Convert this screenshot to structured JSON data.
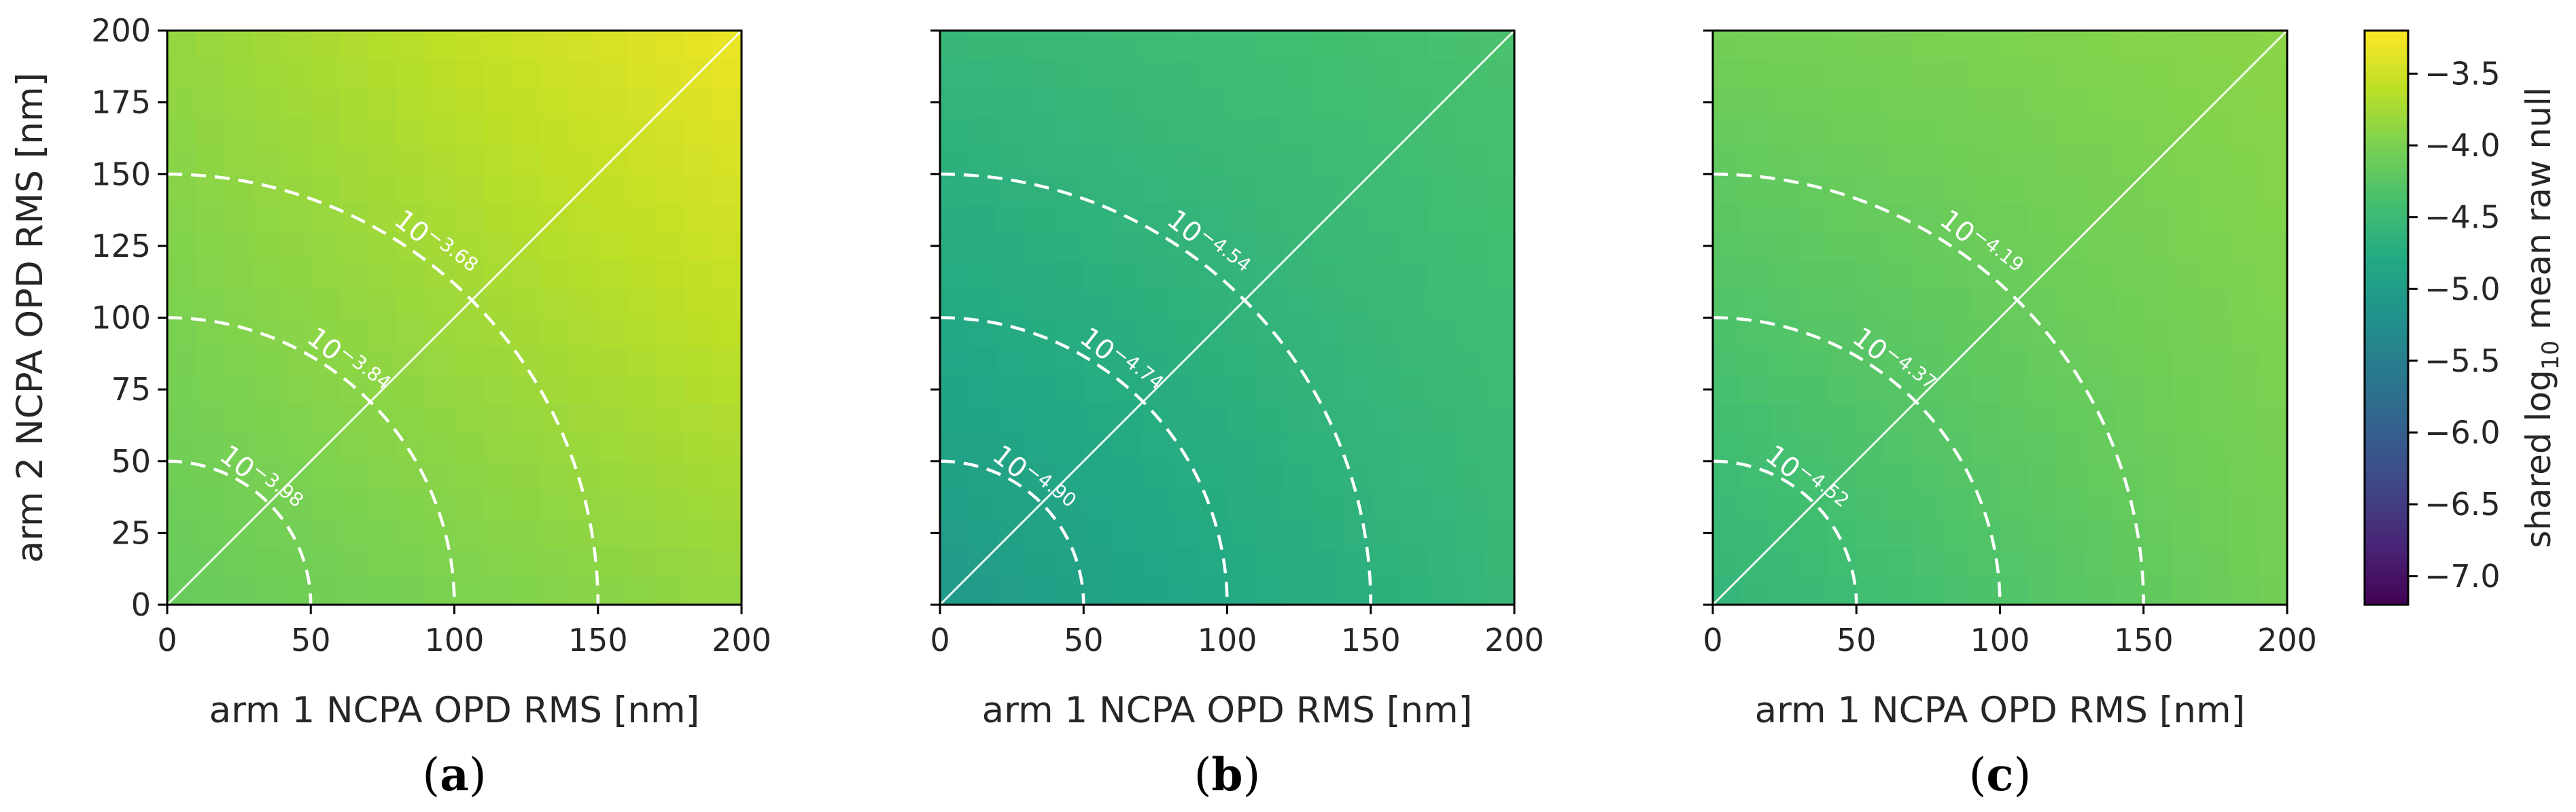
{
  "chart_data": [
    {
      "type": "heatmap",
      "panel_label": "(a)",
      "panel_letter": "a",
      "xlabel": "arm 1 NCPA OPD RMS [nm]",
      "ylabel": "arm 2 NCPA OPD RMS [nm]",
      "xlim": [
        0,
        200
      ],
      "ylim": [
        0,
        200
      ],
      "xticks": [
        0,
        50,
        100,
        150,
        200
      ],
      "yticks": [
        0,
        25,
        50,
        75,
        100,
        125,
        150,
        175,
        200
      ],
      "grid": 20,
      "field": {
        "c00": -4.15,
        "c10": -3.85,
        "c01": -3.85,
        "c11": -3.3
      },
      "contours": [
        {
          "radius": 50,
          "mantissa": "10",
          "exponent": "−3.98"
        },
        {
          "radius": 100,
          "mantissa": "10",
          "exponent": "−3.84"
        },
        {
          "radius": 150,
          "mantissa": "10",
          "exponent": "−3.68"
        }
      ]
    },
    {
      "type": "heatmap",
      "panel_label": "(b)",
      "panel_letter": "b",
      "xlabel": "arm 1 NCPA OPD RMS [nm]",
      "ylabel": "",
      "xlim": [
        0,
        200
      ],
      "ylim": [
        0,
        200
      ],
      "xticks": [
        0,
        50,
        100,
        150,
        200
      ],
      "yticks": [
        0,
        25,
        50,
        75,
        100,
        125,
        150,
        175,
        200
      ],
      "grid": 20,
      "field": {
        "c00": -5.05,
        "c10": -4.55,
        "c01": -4.55,
        "c11": -4.35
      },
      "contours": [
        {
          "radius": 50,
          "mantissa": "10",
          "exponent": "−4.90"
        },
        {
          "radius": 100,
          "mantissa": "10",
          "exponent": "−4.74"
        },
        {
          "radius": 150,
          "mantissa": "10",
          "exponent": "−4.54"
        }
      ]
    },
    {
      "type": "heatmap",
      "panel_label": "(c)",
      "panel_letter": "c",
      "xlabel": "arm 1 NCPA OPD RMS [nm]",
      "ylabel": "",
      "xlim": [
        0,
        200
      ],
      "ylim": [
        0,
        200
      ],
      "xticks": [
        0,
        50,
        100,
        150,
        200
      ],
      "yticks": [
        0,
        25,
        50,
        75,
        100,
        125,
        150,
        175,
        200
      ],
      "grid": 20,
      "field": {
        "c00": -4.6,
        "c10": -4.05,
        "c01": -4.05,
        "c11": -3.9
      },
      "contours": [
        {
          "radius": 50,
          "mantissa": "10",
          "exponent": "−4.52"
        },
        {
          "radius": 100,
          "mantissa": "10",
          "exponent": "−4.37"
        },
        {
          "radius": 150,
          "mantissa": "10",
          "exponent": "−4.19"
        }
      ]
    }
  ],
  "colorbar": {
    "label_prefix": "shared log",
    "label_subscript": "10",
    "label_suffix": " mean raw null",
    "colormap": "viridis",
    "vmin": -7.2,
    "vmax": -3.2,
    "ticks": [
      -3.5,
      -4.0,
      -4.5,
      -5.0,
      -5.5,
      -6.0,
      -6.5,
      -7.0
    ],
    "tick_labels": [
      "−3.5",
      "−4.0",
      "−4.5",
      "−5.0",
      "−5.5",
      "−6.0",
      "−6.5",
      "−7.0"
    ]
  }
}
